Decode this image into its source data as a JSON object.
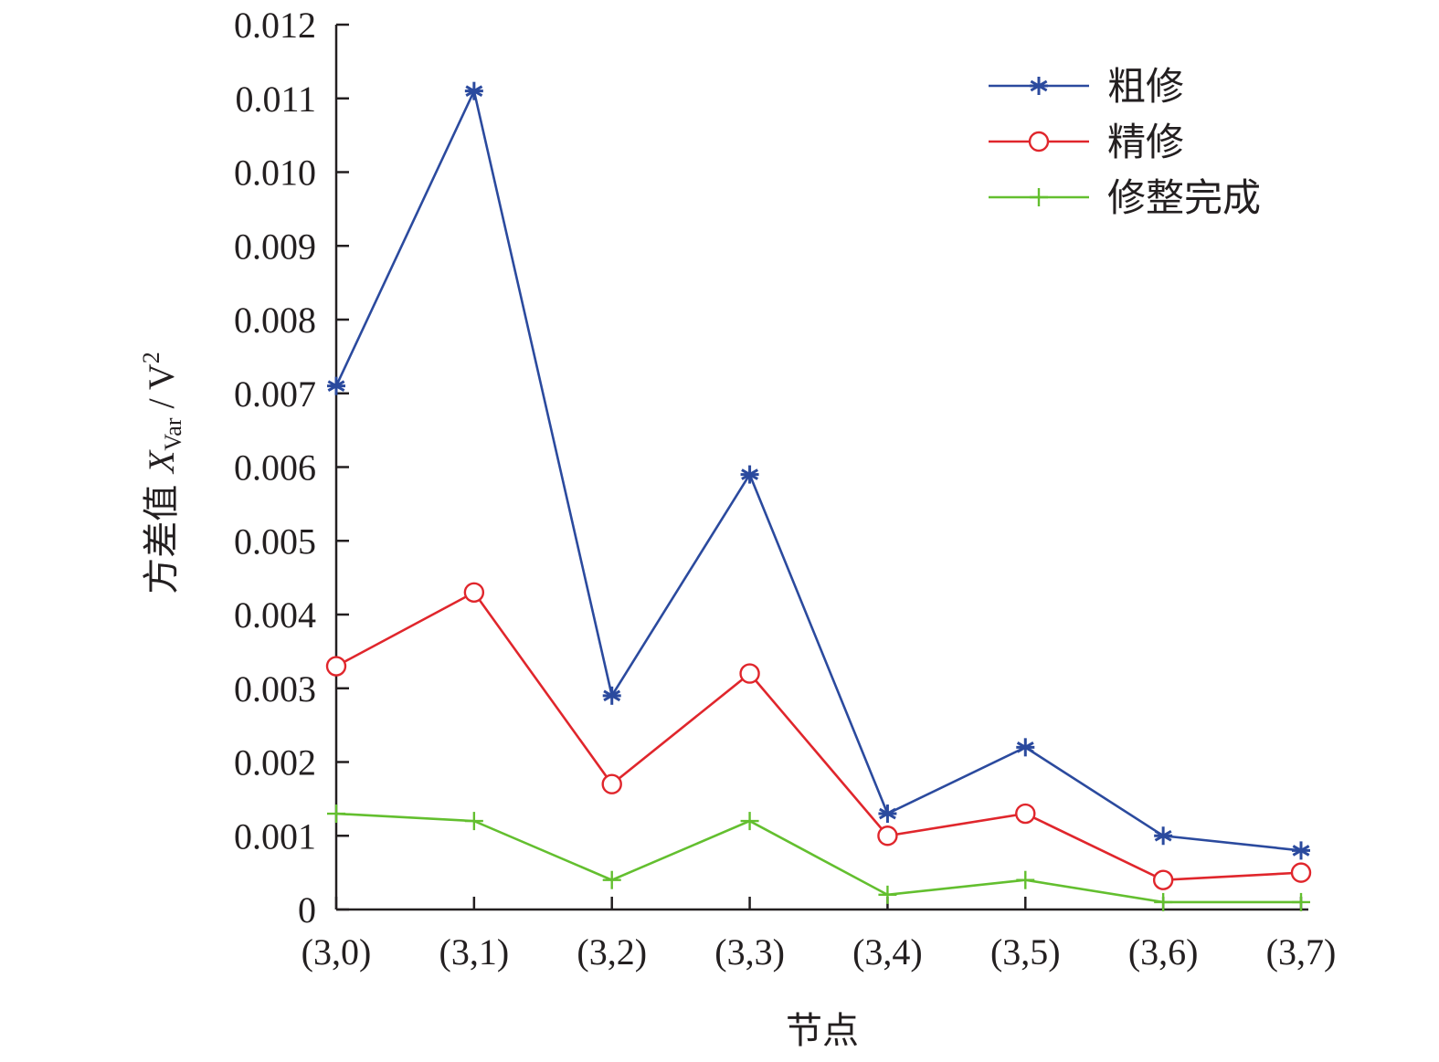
{
  "chart_data": {
    "type": "line",
    "xlabel": "节点",
    "ylabel_parts": {
      "prefix": "方差值 ",
      "var": "X",
      "sub": "Var",
      "slash": " / V",
      "sup": "2"
    },
    "categories": [
      "(3,0)",
      "(3,1)",
      "(3,2)",
      "(3,3)",
      "(3,4)",
      "(3,5)",
      "(3,6)",
      "(3,7)"
    ],
    "ylim": [
      0,
      0.012
    ],
    "yticks": [
      "0",
      "0.001",
      "0.002",
      "0.003",
      "0.004",
      "0.005",
      "0.006",
      "0.007",
      "0.008",
      "0.009",
      "0.010",
      "0.011",
      "0.012"
    ],
    "legend_position": "top-right",
    "series": [
      {
        "name": "粗修",
        "color": "#2b4a9e",
        "marker": "asterisk",
        "values": [
          0.0071,
          0.0111,
          0.0029,
          0.0059,
          0.0013,
          0.0022,
          0.001,
          0.0008
        ]
      },
      {
        "name": "精修",
        "color": "#e0262c",
        "marker": "circle",
        "values": [
          0.0033,
          0.0043,
          0.0017,
          0.0032,
          0.001,
          0.0013,
          0.0004,
          0.0005
        ]
      },
      {
        "name": "修整完成",
        "color": "#63bf2f",
        "marker": "plus",
        "values": [
          0.0013,
          0.0012,
          0.0004,
          0.0012,
          0.0002,
          0.0004,
          0.0001,
          0.0001
        ]
      }
    ]
  }
}
